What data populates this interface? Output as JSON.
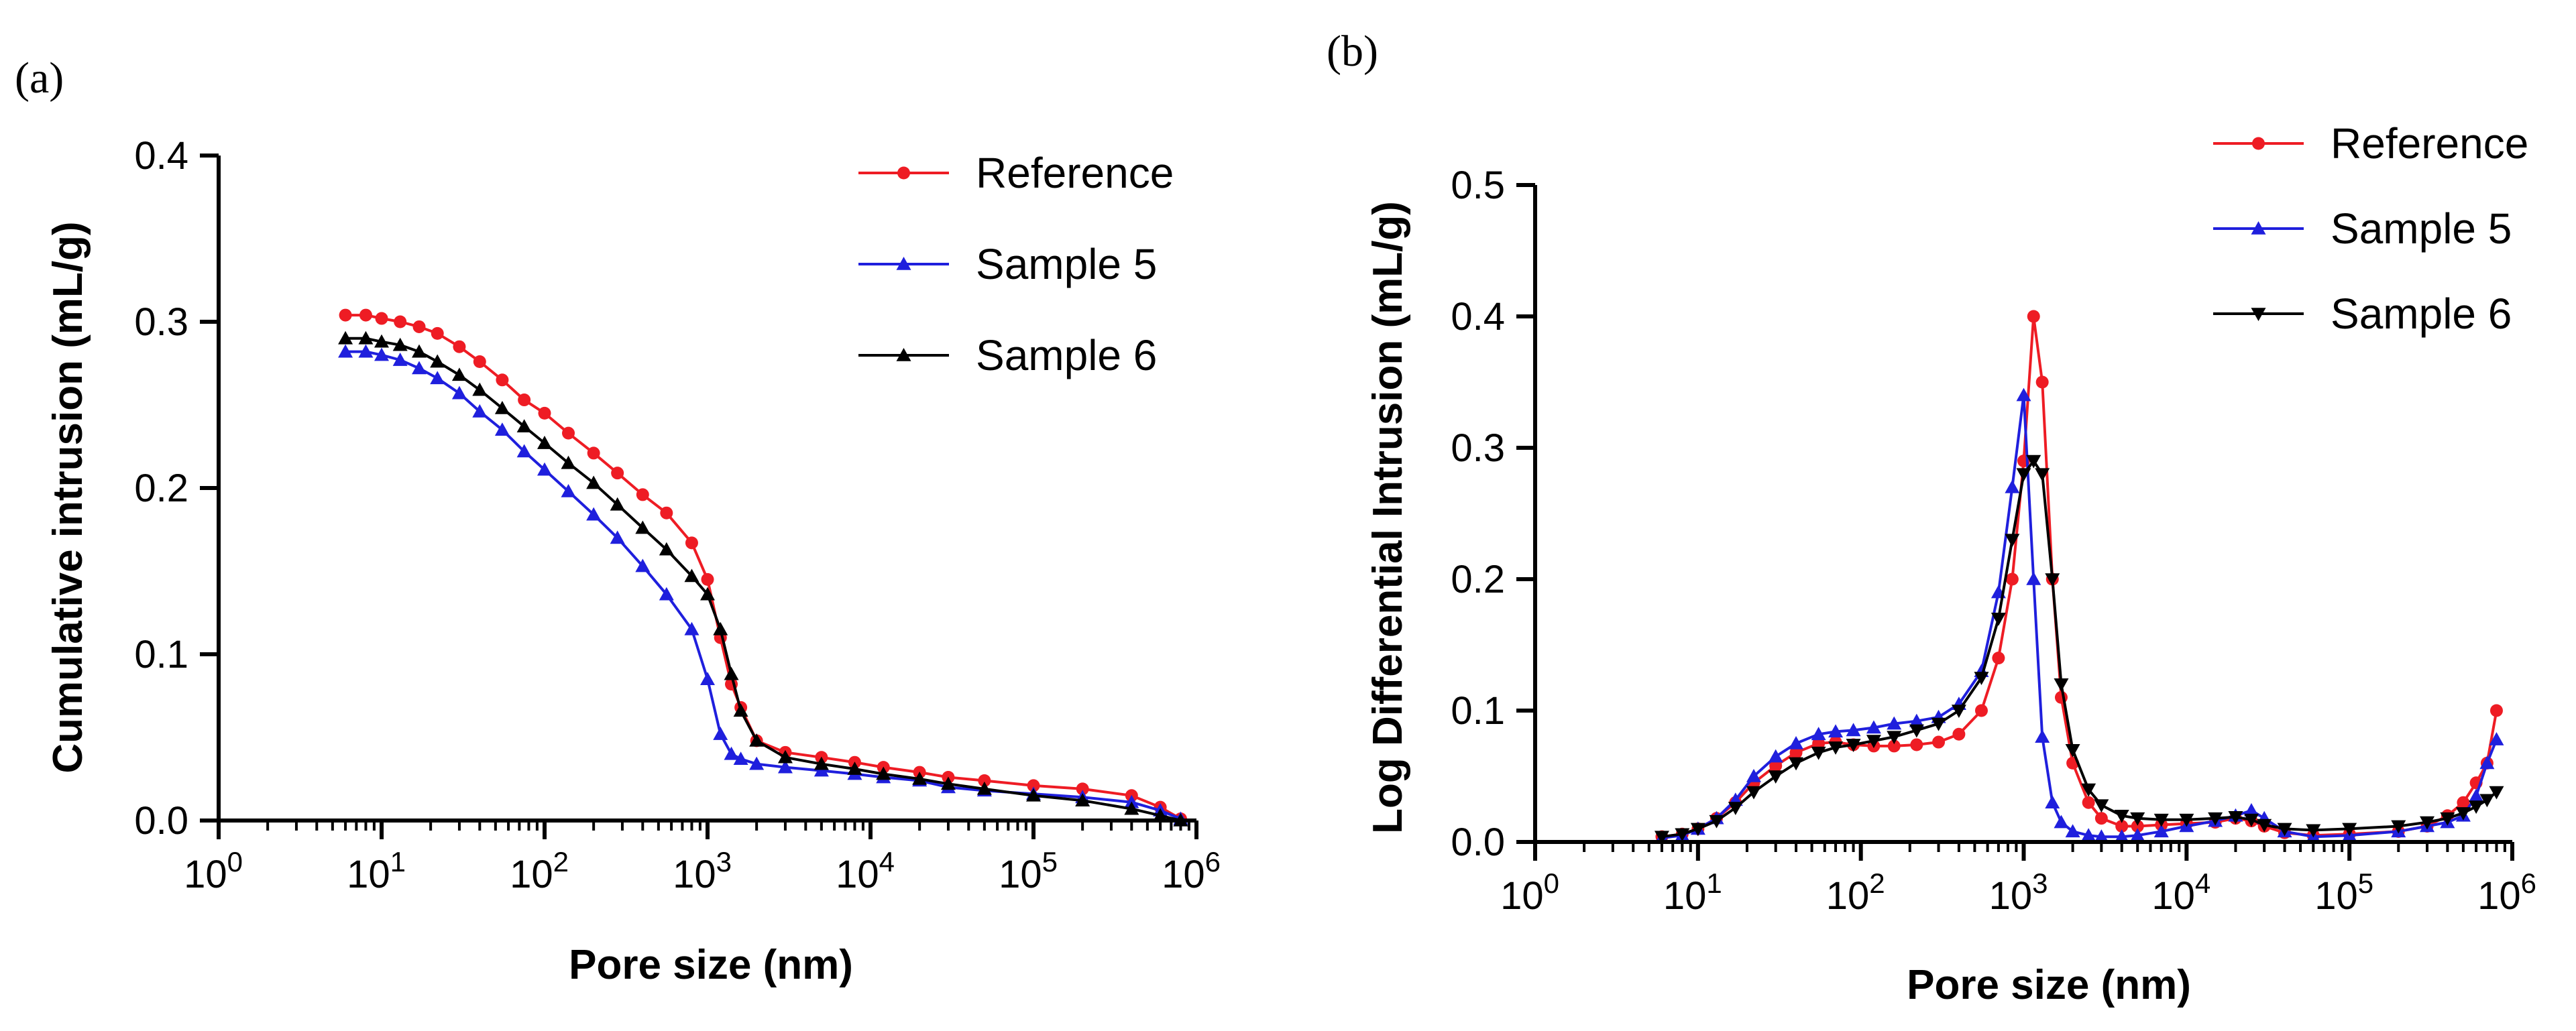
{
  "chart_data": [
    {
      "type": "line",
      "panel_label": "(a)",
      "xlabel": "Pore size (nm)",
      "ylabel": "Cumulative intrusion (mL/g)",
      "xscale": "log",
      "xlim": [
        1,
        1000000
      ],
      "ylim": [
        0,
        0.4
      ],
      "x_ticks": [
        {
          "base": "10",
          "exp": "0",
          "value": 1
        },
        {
          "base": "10",
          "exp": "1",
          "value": 10
        },
        {
          "base": "10",
          "exp": "2",
          "value": 100
        },
        {
          "base": "10",
          "exp": "3",
          "value": 1000
        },
        {
          "base": "10",
          "exp": "4",
          "value": 10000
        },
        {
          "base": "10",
          "exp": "5",
          "value": 100000
        },
        {
          "base": "10",
          "exp": "6",
          "value": 1000000
        }
      ],
      "y_ticks": [
        "0.0",
        "0.1",
        "0.2",
        "0.3",
        "0.4"
      ],
      "legend_position": "top-right",
      "series": [
        {
          "name": "Reference",
          "color": "#ee1c24",
          "marker": "circle",
          "x": [
            6,
            8,
            10,
            13,
            17,
            22,
            30,
            40,
            55,
            75,
            100,
            140,
            200,
            280,
            400,
            560,
            800,
            1000,
            1200,
            1400,
            1600,
            2000,
            3000,
            5000,
            8000,
            12000,
            20000,
            30000,
            50000,
            100000,
            200000,
            400000,
            600000,
            800000
          ],
          "y": [
            0.304,
            0.304,
            0.302,
            0.3,
            0.297,
            0.293,
            0.285,
            0.276,
            0.265,
            0.253,
            0.245,
            0.233,
            0.221,
            0.209,
            0.196,
            0.185,
            0.167,
            0.145,
            0.11,
            0.082,
            0.068,
            0.048,
            0.041,
            0.038,
            0.035,
            0.032,
            0.029,
            0.026,
            0.024,
            0.021,
            0.019,
            0.015,
            0.008,
            0.001
          ]
        },
        {
          "name": "Sample 5",
          "color": "#1f1fdd",
          "marker": "triangle-up",
          "x": [
            6,
            8,
            10,
            13,
            17,
            22,
            30,
            40,
            55,
            75,
            100,
            140,
            200,
            280,
            400,
            560,
            800,
            1000,
            1200,
            1400,
            1600,
            2000,
            3000,
            5000,
            8000,
            12000,
            20000,
            30000,
            50000,
            100000,
            200000,
            400000,
            600000,
            800000
          ],
          "y": [
            0.282,
            0.282,
            0.28,
            0.277,
            0.272,
            0.266,
            0.257,
            0.246,
            0.235,
            0.222,
            0.211,
            0.198,
            0.184,
            0.17,
            0.153,
            0.136,
            0.115,
            0.085,
            0.052,
            0.04,
            0.037,
            0.034,
            0.032,
            0.03,
            0.028,
            0.026,
            0.024,
            0.02,
            0.018,
            0.016,
            0.014,
            0.011,
            0.006,
            0.001
          ]
        },
        {
          "name": "Sample 6",
          "color": "#000000",
          "marker": "triangle-up",
          "x": [
            6,
            8,
            10,
            13,
            17,
            22,
            30,
            40,
            55,
            75,
            100,
            140,
            200,
            280,
            400,
            560,
            800,
            1000,
            1200,
            1400,
            1600,
            2000,
            3000,
            5000,
            8000,
            12000,
            20000,
            30000,
            50000,
            100000,
            200000,
            400000,
            600000,
            800000
          ],
          "y": [
            0.29,
            0.29,
            0.288,
            0.286,
            0.282,
            0.276,
            0.268,
            0.259,
            0.248,
            0.237,
            0.227,
            0.215,
            0.203,
            0.19,
            0.176,
            0.163,
            0.147,
            0.136,
            0.115,
            0.088,
            0.066,
            0.048,
            0.038,
            0.034,
            0.031,
            0.028,
            0.025,
            0.022,
            0.019,
            0.015,
            0.012,
            0.007,
            0.003,
            0.0
          ]
        }
      ]
    },
    {
      "type": "line",
      "panel_label": "(b)",
      "xlabel": "Pore size (nm)",
      "ylabel": "Log  Differential Intrusion (mL/g)",
      "xscale": "log",
      "xlim": [
        1,
        1000000
      ],
      "ylim": [
        0,
        0.5
      ],
      "x_ticks": [
        {
          "base": "10",
          "exp": "0",
          "value": 1
        },
        {
          "base": "10",
          "exp": "1",
          "value": 10
        },
        {
          "base": "10",
          "exp": "2",
          "value": 100
        },
        {
          "base": "10",
          "exp": "3",
          "value": 1000
        },
        {
          "base": "10",
          "exp": "4",
          "value": 10000
        },
        {
          "base": "10",
          "exp": "5",
          "value": 100000
        },
        {
          "base": "10",
          "exp": "6",
          "value": 1000000
        }
      ],
      "y_ticks": [
        "0.0",
        "0.1",
        "0.2",
        "0.3",
        "0.4",
        "0.5"
      ],
      "legend_position": "top-right",
      "series": [
        {
          "name": "Reference",
          "color": "#ee1c24",
          "marker": "circle",
          "x": [
            6,
            8,
            10,
            13,
            17,
            22,
            30,
            40,
            55,
            70,
            90,
            120,
            160,
            220,
            300,
            400,
            550,
            700,
            850,
            1000,
            1150,
            1300,
            1500,
            1700,
            2000,
            2500,
            3000,
            4000,
            5000,
            7000,
            10000,
            15000,
            20000,
            25000,
            30000,
            40000,
            60000,
            100000,
            200000,
            300000,
            400000,
            500000,
            600000,
            700000,
            800000
          ],
          "y": [
            0.004,
            0.006,
            0.01,
            0.018,
            0.03,
            0.045,
            0.058,
            0.068,
            0.075,
            0.076,
            0.074,
            0.073,
            0.073,
            0.074,
            0.076,
            0.082,
            0.1,
            0.14,
            0.2,
            0.29,
            0.4,
            0.35,
            0.2,
            0.11,
            0.06,
            0.03,
            0.018,
            0.012,
            0.012,
            0.013,
            0.014,
            0.015,
            0.018,
            0.016,
            0.012,
            0.007,
            0.005,
            0.006,
            0.008,
            0.012,
            0.02,
            0.03,
            0.045,
            0.06,
            0.1
          ]
        },
        {
          "name": "Sample 5",
          "color": "#1f1fdd",
          "marker": "triangle-up",
          "x": [
            6,
            8,
            10,
            13,
            17,
            22,
            30,
            40,
            55,
            70,
            90,
            120,
            160,
            220,
            300,
            400,
            550,
            700,
            850,
            1000,
            1150,
            1300,
            1500,
            1700,
            2000,
            2500,
            3000,
            4000,
            5000,
            7000,
            10000,
            15000,
            20000,
            25000,
            30000,
            40000,
            60000,
            100000,
            200000,
            300000,
            400000,
            500000,
            600000,
            700000,
            800000
          ],
          "y": [
            0.003,
            0.005,
            0.01,
            0.018,
            0.032,
            0.05,
            0.065,
            0.075,
            0.082,
            0.084,
            0.085,
            0.087,
            0.09,
            0.092,
            0.095,
            0.105,
            0.13,
            0.19,
            0.27,
            0.34,
            0.2,
            0.08,
            0.03,
            0.015,
            0.008,
            0.005,
            0.004,
            0.004,
            0.005,
            0.008,
            0.012,
            0.016,
            0.02,
            0.024,
            0.018,
            0.008,
            0.004,
            0.005,
            0.008,
            0.012,
            0.015,
            0.02,
            0.035,
            0.06,
            0.078
          ]
        },
        {
          "name": "Sample 6",
          "color": "#000000",
          "marker": "triangle-down",
          "x": [
            6,
            8,
            10,
            13,
            17,
            22,
            30,
            40,
            55,
            70,
            90,
            120,
            160,
            220,
            300,
            400,
            550,
            700,
            850,
            1000,
            1150,
            1300,
            1500,
            1700,
            2000,
            2500,
            3000,
            4000,
            5000,
            7000,
            10000,
            15000,
            20000,
            25000,
            30000,
            40000,
            60000,
            100000,
            200000,
            300000,
            400000,
            500000,
            600000,
            700000,
            800000
          ],
          "y": [
            0.004,
            0.006,
            0.01,
            0.016,
            0.026,
            0.038,
            0.05,
            0.06,
            0.068,
            0.072,
            0.074,
            0.077,
            0.08,
            0.085,
            0.09,
            0.1,
            0.125,
            0.17,
            0.23,
            0.28,
            0.29,
            0.28,
            0.2,
            0.12,
            0.07,
            0.04,
            0.028,
            0.02,
            0.018,
            0.017,
            0.017,
            0.018,
            0.019,
            0.017,
            0.013,
            0.01,
            0.009,
            0.01,
            0.012,
            0.015,
            0.018,
            0.022,
            0.027,
            0.032,
            0.038
          ]
        }
      ]
    }
  ]
}
